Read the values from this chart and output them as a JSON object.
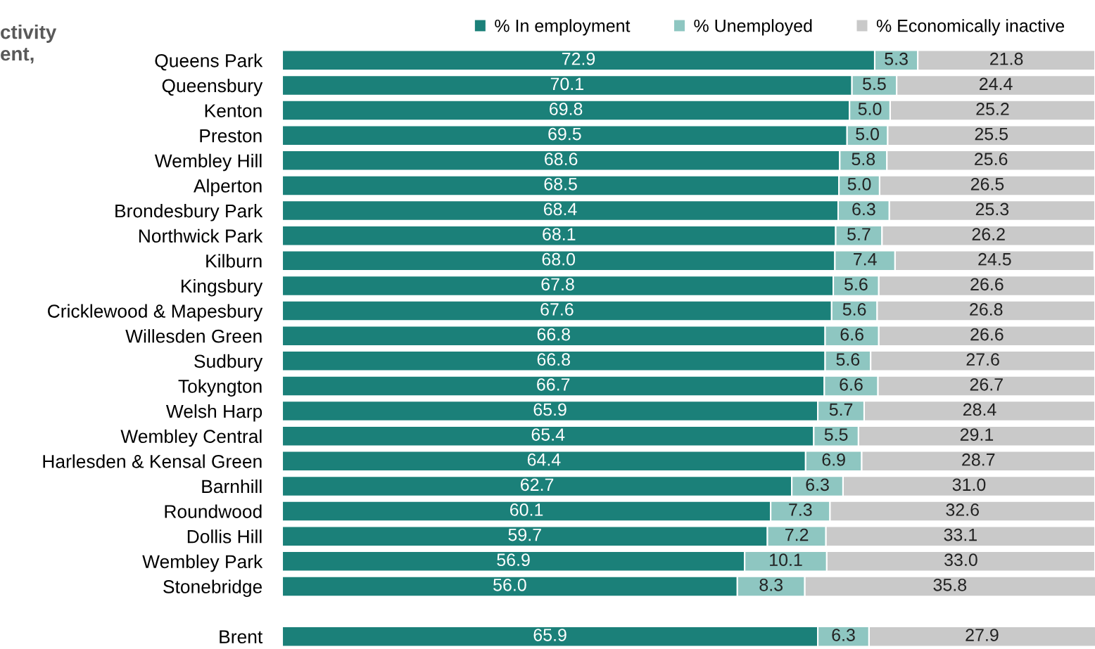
{
  "chart_data": {
    "type": "bar",
    "orientation": "horizontal",
    "stacked": true,
    "title": "ctivity\nent,",
    "categories": [
      "Queens Park",
      "Queensbury",
      "Kenton",
      "Preston",
      "Wembley Hill",
      "Alperton",
      "Brondesbury Park",
      "Northwick Park",
      "Kilburn",
      "Kingsbury",
      "Cricklewood & Mapesbury",
      "Willesden Green",
      "Sudbury",
      "Tokyngton",
      "Welsh Harp",
      "Wembley Central",
      "Harlesden & Kensal Green",
      "Barnhill",
      "Roundwood",
      "Dollis Hill",
      "Wembley Park",
      "Stonebridge",
      null,
      "Brent"
    ],
    "series": [
      {
        "name": "% In employment",
        "color": "#1b8079",
        "values": [
          72.9,
          70.1,
          69.8,
          69.5,
          68.6,
          68.5,
          68.4,
          68.1,
          68.0,
          67.8,
          67.6,
          66.8,
          66.8,
          66.7,
          65.9,
          65.4,
          64.4,
          62.7,
          60.1,
          59.7,
          56.9,
          56.0,
          null,
          65.9
        ],
        "value_labels": [
          "72.9",
          "70.1",
          "69.8",
          "69.5",
          "68.6",
          "68.5",
          "68.4",
          "68.1",
          "68.0",
          "67.8",
          "67.6",
          "66.8",
          "66.8",
          "66.7",
          "65.9",
          "65.4",
          "64.4",
          "62.7",
          "60.1",
          "59.7",
          "56.9",
          "56.0",
          null,
          "65.9"
        ]
      },
      {
        "name": "% Unemployed",
        "color": "#8ec6c1",
        "values": [
          5.3,
          5.5,
          5.0,
          5.0,
          5.8,
          5.0,
          6.3,
          5.7,
          7.4,
          5.6,
          5.6,
          6.6,
          5.6,
          6.6,
          5.7,
          5.5,
          6.9,
          6.3,
          7.3,
          7.2,
          10.1,
          8.3,
          null,
          6.3
        ],
        "value_labels": [
          "5.3",
          "5.5",
          "5.0",
          "5.0",
          "5.8",
          "5.0",
          "6.3",
          "5.7",
          "7.4",
          "5.6",
          "5.6",
          "6.6",
          "5.6",
          "6.6",
          "5.7",
          "5.5",
          "6.9",
          "6.3",
          "7.3",
          "7.2",
          "10.1",
          "8.3",
          null,
          "6.3"
        ]
      },
      {
        "name": "% Economically inactive",
        "color": "#c9c9c9",
        "values": [
          21.8,
          24.4,
          25.2,
          25.5,
          25.6,
          26.5,
          25.3,
          26.2,
          24.5,
          26.6,
          26.8,
          26.6,
          27.6,
          26.7,
          28.4,
          29.1,
          28.7,
          31.0,
          32.6,
          33.1,
          33.0,
          35.8,
          null,
          27.9
        ],
        "value_labels": [
          "21.8",
          "24.4",
          "25.2",
          "25.5",
          "25.6",
          "26.5",
          "25.3",
          "26.2",
          "24.5",
          "26.6",
          "26.8",
          "26.6",
          "27.6",
          "26.7",
          "28.4",
          "29.1",
          "28.7",
          "31.0",
          "32.6",
          "33.1",
          "33.0",
          "35.8",
          null,
          "27.9"
        ]
      }
    ],
    "xlim": [
      0,
      100
    ],
    "tick_labels": "y",
    "legend": "top",
    "grid": false
  }
}
